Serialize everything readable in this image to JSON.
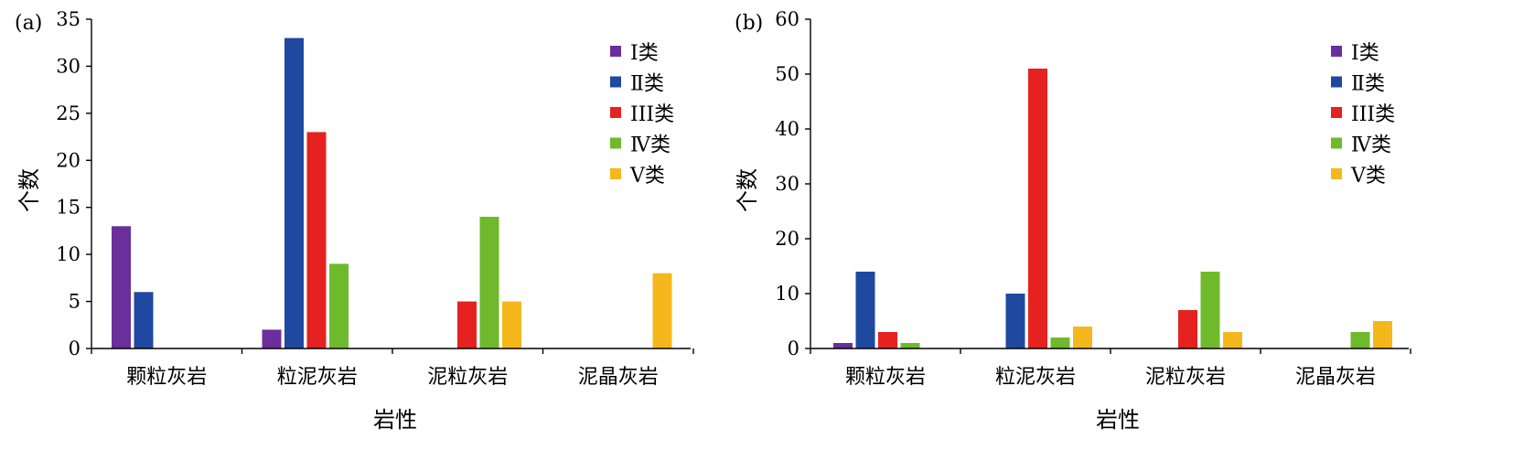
{
  "chart_data": [
    {
      "panel_label": "(a)",
      "type": "bar",
      "categories": [
        "颗粒灰岩",
        "粒泥灰岩",
        "泥粒灰岩",
        "泥晶灰岩"
      ],
      "series": [
        {
          "name": "Ⅰ类",
          "color": "#6a2f9a",
          "values": [
            13,
            2,
            0,
            0
          ]
        },
        {
          "name": "Ⅱ类",
          "color": "#1f48a0",
          "values": [
            6,
            33,
            0,
            0
          ]
        },
        {
          "name": "III类",
          "color": "#e5221f",
          "values": [
            0,
            23,
            5,
            0
          ]
        },
        {
          "name": "Ⅳ类",
          "color": "#6fba2c",
          "values": [
            0,
            9,
            14,
            0
          ]
        },
        {
          "name": "Ⅴ类",
          "color": "#f5b81c",
          "values": [
            0,
            0,
            5,
            8
          ]
        }
      ],
      "xlabel": "岩性",
      "ylabel": "个数",
      "ylim": [
        0,
        35
      ],
      "yticks": [
        0,
        5,
        10,
        15,
        20,
        25,
        30,
        35
      ],
      "grid": false,
      "legend": "top-right"
    },
    {
      "panel_label": "(b)",
      "type": "bar",
      "categories": [
        "颗粒灰岩",
        "粒泥灰岩",
        "泥粒灰岩",
        "泥晶灰岩"
      ],
      "series": [
        {
          "name": "Ⅰ类",
          "color": "#6a2f9a",
          "values": [
            1,
            0,
            0,
            0
          ]
        },
        {
          "name": "Ⅱ类",
          "color": "#1f48a0",
          "values": [
            14,
            10,
            0,
            0
          ]
        },
        {
          "name": "III类",
          "color": "#e5221f",
          "values": [
            3,
            51,
            7,
            0
          ]
        },
        {
          "name": "Ⅳ类",
          "color": "#6fba2c",
          "values": [
            1,
            2,
            14,
            3
          ]
        },
        {
          "name": "Ⅴ类",
          "color": "#f5b81c",
          "values": [
            0,
            4,
            3,
            5
          ]
        }
      ],
      "xlabel": "岩性",
      "ylabel": "个数",
      "ylim": [
        0,
        60
      ],
      "yticks": [
        0,
        10,
        20,
        30,
        40,
        50,
        60
      ],
      "grid": false,
      "legend": "top-right"
    }
  ]
}
